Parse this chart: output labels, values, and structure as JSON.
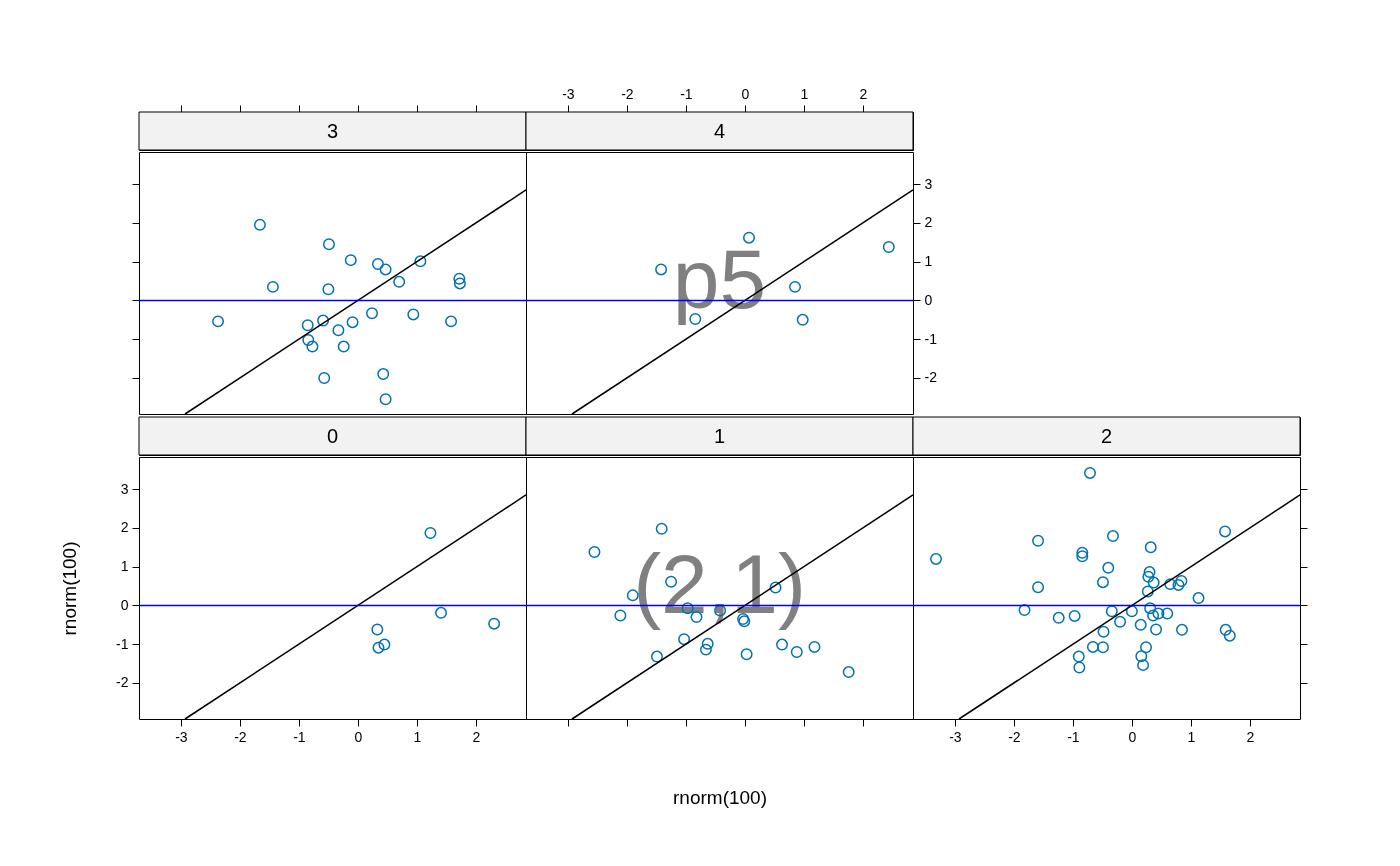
{
  "chart_data": [
    {
      "type": "scatter",
      "title": "3",
      "marker": "circle",
      "tick_labels": false,
      "xlim": [
        -3.71,
        2.85
      ],
      "ylim": [
        -2.93,
        3.83
      ],
      "xticks": [
        -3,
        -2,
        -1,
        0,
        1,
        2
      ],
      "yticks": [
        -2,
        -1,
        0,
        1,
        2,
        3
      ],
      "ref_lines": [
        {
          "axis": "y",
          "value": 0,
          "color": "#0000ff"
        }
      ],
      "series": [
        {
          "type": "scatter",
          "color": "#0072b2",
          "x": [
            -1.66,
            -0.49,
            -0.12,
            0.34,
            0.47,
            1.06,
            0.7,
            1.72,
            1.73,
            -1.44,
            -0.5,
            -2.37,
            -0.85,
            -0.59,
            -0.33,
            -0.09,
            0.24,
            0.94,
            1.58,
            -0.84,
            -0.77,
            -0.24,
            -0.57,
            0.43,
            0.47
          ],
          "values": [
            1.95,
            1.45,
            1.04,
            0.94,
            0.8,
            1.01,
            0.48,
            0.56,
            0.44,
            0.35,
            0.29,
            -0.54,
            -0.64,
            -0.52,
            -0.77,
            -0.56,
            -0.33,
            -0.36,
            -0.54,
            -1.02,
            -1.19,
            -1.19,
            -2.0,
            -1.9,
            -2.55
          ]
        },
        {
          "type": "line",
          "marker": "none",
          "color": "#000000",
          "x": [
            -2.93,
            2.85
          ],
          "values": [
            -2.93,
            2.85
          ]
        }
      ]
    },
    {
      "type": "scatter",
      "title": "4",
      "marker": "circle",
      "xlim": [
        -3.71,
        2.85
      ],
      "ylim": [
        -2.93,
        3.83
      ],
      "xticks": [
        -3,
        -2,
        -1,
        0,
        1,
        2
      ],
      "yticks": [
        -2,
        -1,
        0,
        1,
        2,
        3
      ],
      "annotations": [
        "p5"
      ],
      "ref_lines": [
        {
          "axis": "y",
          "value": 0,
          "color": "#0000ff"
        }
      ],
      "series": [
        {
          "type": "scatter",
          "color": "#0072b2",
          "x": [
            0.07,
            -1.42,
            2.44,
            0.85,
            -0.84,
            0.98
          ],
          "values": [
            1.62,
            0.8,
            1.38,
            0.35,
            -0.48,
            -0.5
          ]
        },
        {
          "type": "line",
          "marker": "none",
          "color": "#000000",
          "x": [
            -2.93,
            2.85
          ],
          "values": [
            -2.93,
            2.85
          ]
        }
      ]
    },
    {
      "type": "scatter",
      "title": "0",
      "ylabel": "rnorm(100)",
      "marker": "circle",
      "xlim": [
        -3.71,
        2.85
      ],
      "ylim": [
        -2.93,
        3.83
      ],
      "xticks": [
        -3,
        -2,
        -1,
        0,
        1,
        2
      ],
      "yticks": [
        -2,
        -1,
        0,
        1,
        2,
        3
      ],
      "ref_lines": [
        {
          "axis": "y",
          "value": 0,
          "color": "#0000ff"
        }
      ],
      "series": [
        {
          "type": "scatter",
          "color": "#0072b2",
          "x": [
            1.23,
            1.41,
            2.31,
            0.33,
            0.45,
            0.35
          ],
          "values": [
            1.87,
            -0.19,
            -0.47,
            -0.62,
            -1.01,
            -1.09
          ]
        },
        {
          "type": "line",
          "marker": "none",
          "color": "#000000",
          "x": [
            -2.93,
            2.85
          ],
          "values": [
            -2.93,
            2.85
          ]
        }
      ]
    },
    {
      "type": "scatter",
      "title": "1",
      "xlabel": "rnorm(100)",
      "marker": "circle",
      "tick_labels": false,
      "xlim": [
        -3.71,
        2.85
      ],
      "ylim": [
        -2.93,
        3.83
      ],
      "xticks": [
        -3,
        -2,
        -1,
        0,
        1,
        2
      ],
      "annotations": [
        "(2,1)"
      ],
      "ref_lines": [
        {
          "axis": "y",
          "value": 0,
          "color": "#0000ff"
        }
      ],
      "series": [
        {
          "type": "scatter",
          "color": "#0072b2",
          "x": [
            -1.41,
            -2.55,
            -1.25,
            -1.9,
            -2.11,
            -0.97,
            -0.82,
            -0.42,
            -0.03,
            -0.01,
            0.52,
            -1.03,
            -0.63,
            -0.66,
            -1.49,
            0.03,
            0.63,
            0.88,
            1.18,
            1.76
          ],
          "values": [
            1.98,
            1.38,
            0.61,
            0.26,
            -0.26,
            -0.07,
            -0.3,
            -0.13,
            -0.35,
            -0.41,
            0.46,
            -0.87,
            -0.99,
            -1.14,
            -1.32,
            -1.26,
            -1.01,
            -1.2,
            -1.07,
            -1.72
          ]
        },
        {
          "type": "line",
          "marker": "none",
          "color": "#000000",
          "x": [
            -2.93,
            2.85
          ],
          "values": [
            -2.93,
            2.85
          ]
        }
      ]
    },
    {
      "type": "scatter",
      "title": "2",
      "marker": "circle",
      "tick_labels": "x",
      "xlim": [
        -3.71,
        2.85
      ],
      "ylim": [
        -2.93,
        3.83
      ],
      "xticks": [
        -3,
        -2,
        -1,
        0,
        1,
        2
      ],
      "yticks": [
        -2,
        -1,
        0,
        1,
        2,
        3
      ],
      "ref_lines": [
        {
          "axis": "y",
          "value": 0,
          "color": "#0000ff"
        }
      ],
      "series": [
        {
          "type": "scatter",
          "color": "#0072b2",
          "x": [
            -0.71,
            -3.32,
            -1.59,
            -0.84,
            -0.84,
            -0.32,
            1.58,
            0.32,
            -0.4,
            -0.49,
            -1.59,
            0.3,
            0.28,
            0.37,
            0.65,
            0.79,
            0.84,
            0.27,
            1.13,
            -1.82,
            -1.24,
            -0.97,
            -0.34,
            0.0,
            0.31,
            0.36,
            0.45,
            0.6,
            -0.2,
            0.15,
            0.41,
            0.85,
            -0.48,
            1.59,
            1.66,
            -0.66,
            -0.49,
            0.24,
            0.16,
            -0.9,
            0.19,
            -0.89
          ],
          "values": [
            3.42,
            1.2,
            1.67,
            1.36,
            1.27,
            1.79,
            1.91,
            1.5,
            0.97,
            0.6,
            0.47,
            0.86,
            0.74,
            0.59,
            0.55,
            0.53,
            0.63,
            0.36,
            0.19,
            -0.12,
            -0.32,
            -0.27,
            -0.15,
            -0.15,
            -0.07,
            -0.26,
            -0.21,
            -0.21,
            -0.42,
            -0.5,
            -0.62,
            -0.63,
            -0.68,
            -0.63,
            -0.78,
            -1.07,
            -1.08,
            -1.08,
            -1.31,
            -1.32,
            -1.54,
            -1.6
          ]
        },
        {
          "type": "line",
          "marker": "none",
          "color": "#000000",
          "x": [
            -2.93,
            2.85
          ],
          "values": [
            -2.93,
            2.85
          ]
        }
      ]
    }
  ]
}
